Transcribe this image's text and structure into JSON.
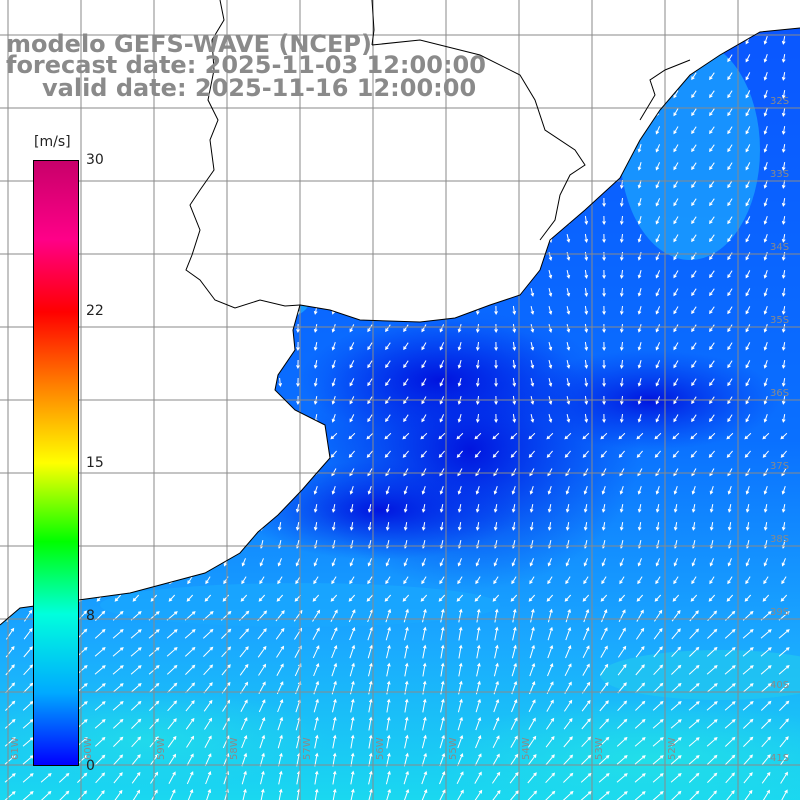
{
  "header": {
    "line1": "modelo GEFS-WAVE (NCEP)",
    "line2": "forecast date: 2025-11-03 12:00:00",
    "line3": "valid date: 2025-11-16 12:00:00"
  },
  "colorbar": {
    "unit": "[m/s]",
    "ticks": [
      "30",
      "22",
      "15",
      "8",
      "0"
    ],
    "colors": [
      "#0000ff",
      "#00aaff",
      "#00ffdd",
      "#00ff00",
      "#ffff00",
      "#ff8800",
      "#ff0000",
      "#ff0088",
      "#c8006a"
    ]
  },
  "grid": {
    "lat_labels": [
      "32S",
      "33S",
      "34S",
      "35S",
      "36S",
      "37S",
      "38S",
      "39S",
      "40S",
      "41S"
    ],
    "lon_labels": [
      "61W",
      "60W",
      "59W",
      "58W",
      "57W",
      "56W",
      "55W",
      "54W",
      "53W",
      "52W"
    ]
  },
  "colors": {
    "ocean_deep": "#0022ee",
    "ocean_mid": "#0a66ff",
    "ocean_light": "#1aa8ff",
    "ocean_cyan": "#1ad8f0",
    "land": "#ffffff",
    "gridline": "#888888",
    "title": "#8a8a8a"
  }
}
